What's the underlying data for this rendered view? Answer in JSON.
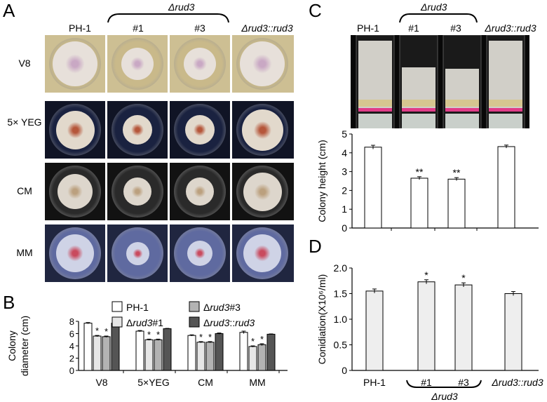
{
  "panel_letters": [
    "A",
    "B",
    "C",
    "D"
  ],
  "panel_a": {
    "group_label": "Δrud3",
    "columns": [
      "PH-1",
      "#1",
      "#3",
      "Δrud3::rud3"
    ],
    "rows": [
      {
        "label": "V8",
        "bg": "#cdbf93",
        "agar": "#c9b98a",
        "colony": "#e7e0da",
        "center": "#c9a8c4"
      },
      {
        "label": "5× YEG",
        "bg": "#101425",
        "agar": "#1a2240",
        "colony": "#e2d9cc",
        "center": "#b5563a"
      },
      {
        "label": "CM",
        "bg": "#121212",
        "agar": "#2a2a2a",
        "colony": "#ddd6cc",
        "center": "#bba07e"
      },
      {
        "label": "MM",
        "bg": "#202640",
        "agar": "#5f6aa0",
        "colony": "#cfd3e6",
        "center": "#c94a5e"
      }
    ],
    "colony_scale": [
      [
        1.0,
        0.72,
        0.72,
        1.0
      ],
      [
        0.86,
        0.66,
        0.66,
        0.92
      ],
      [
        0.78,
        0.62,
        0.62,
        0.86
      ],
      [
        0.84,
        0.52,
        0.56,
        0.84
      ]
    ]
  },
  "panel_c": {
    "group_label": "Δrud3",
    "columns": [
      "PH-1",
      "#1",
      "#3",
      "Δrud3::rud3"
    ],
    "tube_fill": [
      1.0,
      0.62,
      0.6,
      1.0
    ]
  },
  "chart_data": [
    {
      "id": "B",
      "type": "bar",
      "ylabel": "Colony diameter (cm)",
      "ylim": [
        0,
        8
      ],
      "yticks": [
        0,
        2,
        4,
        6,
        8
      ],
      "categories": [
        "V8",
        "5×YEG",
        "CM",
        "MM"
      ],
      "legend_placement": "top",
      "series": [
        {
          "name": "PH-1",
          "color": "#ffffff",
          "values": [
            7.7,
            6.4,
            5.7,
            6.2
          ],
          "errors": [
            0.1,
            0.1,
            0.1,
            0.2
          ],
          "marks": [
            "",
            "",
            "",
            ""
          ]
        },
        {
          "name": "Δrud3#1",
          "color": "#e6e6e6",
          "values": [
            5.6,
            5.0,
            4.6,
            3.9
          ],
          "errors": [
            0.1,
            0.1,
            0.1,
            0.1
          ],
          "marks": [
            "*",
            "*",
            "*",
            "*"
          ]
        },
        {
          "name": "Δrud3#3",
          "color": "#b3b3b3",
          "values": [
            5.5,
            5.0,
            4.6,
            4.2
          ],
          "errors": [
            0.1,
            0.1,
            0.1,
            0.15
          ],
          "marks": [
            "*",
            "*",
            "*",
            "*"
          ]
        },
        {
          "name": "Δrud3::rud3",
          "color": "#555555",
          "values": [
            7.7,
            6.8,
            6.0,
            5.9
          ],
          "errors": [
            0.1,
            0.05,
            0.1,
            0.05
          ],
          "marks": [
            "",
            "",
            "",
            ""
          ]
        }
      ]
    },
    {
      "id": "C",
      "type": "bar",
      "ylabel": "Colony height (cm)",
      "ylim": [
        0,
        5
      ],
      "yticks": [
        0,
        1,
        2,
        3,
        4,
        5
      ],
      "categories": [
        "PH-1",
        "#1",
        "#3",
        "Δrud3::rud3"
      ],
      "values": [
        4.3,
        2.65,
        2.6,
        4.33
      ],
      "errors": [
        0.1,
        0.08,
        0.08,
        0.08
      ],
      "marks": [
        "",
        "**",
        "**",
        ""
      ],
      "color": "#ffffff"
    },
    {
      "id": "D",
      "type": "bar",
      "ylabel": "Conidiation(X10⁶/ml)",
      "ylim": [
        0,
        2.0
      ],
      "yticks": [
        0,
        0.5,
        1.0,
        1.5,
        2.0
      ],
      "ytick_labels": [
        "0",
        "0.5",
        "1.0",
        "1.5",
        "2.0"
      ],
      "categories": [
        "PH-1",
        "#1",
        "#3",
        "Δrud3::rud3"
      ],
      "group_label": "Δrud3",
      "values": [
        1.55,
        1.73,
        1.67,
        1.5
      ],
      "errors": [
        0.04,
        0.04,
        0.04,
        0.04
      ],
      "marks": [
        "",
        "*",
        "*",
        ""
      ],
      "color": "#eeeeee"
    }
  ]
}
